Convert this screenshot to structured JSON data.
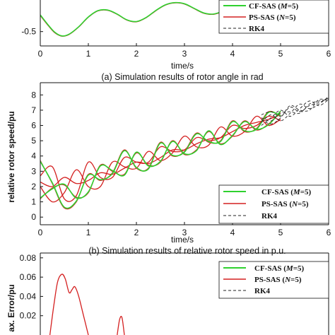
{
  "colors": {
    "cf": "#2fd12f",
    "ps": "#d42020",
    "rk4": "#222222",
    "axis": "#111111"
  },
  "chart_data": [
    {
      "type": "line",
      "caption": "(a) Simulation results of rotor angle in rad",
      "xlabel": "time/s",
      "ylabel": "",
      "xlim": [
        0,
        6
      ],
      "ylim": [
        -0.75,
        0.05
      ],
      "xticks": [
        0,
        1,
        2,
        3,
        4,
        5,
        6
      ],
      "yticks": [
        -0.5
      ],
      "ytick_labels": [
        "-0.5"
      ],
      "legend": {
        "position": "top-right",
        "entries": [
          {
            "label": "CF-SAS (",
            "var": "M",
            "suffix": "=5)",
            "style": "cf"
          },
          {
            "label": "PS-SAS (",
            "var": "N",
            "suffix": "=5)",
            "style": "ps"
          },
          {
            "label": "RK4",
            "var": "",
            "suffix": "",
            "style": "rk4"
          }
        ]
      },
      "series": [
        {
          "style": "ps",
          "x": [
            0,
            0.15,
            0.3,
            0.45,
            0.6,
            0.8,
            1.0,
            1.2,
            1.4,
            1.6,
            1.8,
            2.0,
            2.2,
            2.4,
            2.6,
            2.8,
            3.0,
            3.2,
            3.4,
            3.6,
            3.8,
            4.0,
            4.2,
            4.4,
            4.6,
            4.8,
            5.0
          ],
          "y": [
            -0.22,
            -0.38,
            -0.52,
            -0.58,
            -0.55,
            -0.42,
            -0.25,
            -0.14,
            -0.13,
            -0.2,
            -0.3,
            -0.33,
            -0.26,
            -0.14,
            -0.04,
            0.0,
            -0.02,
            -0.1,
            -0.18,
            -0.2,
            -0.15,
            -0.08,
            -0.04,
            -0.03,
            -0.06,
            -0.1,
            -0.12
          ]
        },
        {
          "style": "cf",
          "x": [
            0,
            0.15,
            0.3,
            0.45,
            0.6,
            0.8,
            1.0,
            1.2,
            1.4,
            1.6,
            1.8,
            2.0,
            2.2,
            2.4,
            2.6,
            2.8,
            3.0,
            3.2,
            3.4,
            3.6,
            3.8,
            4.0,
            4.2,
            4.4,
            4.6,
            4.8,
            5.0
          ],
          "y": [
            -0.21,
            -0.37,
            -0.51,
            -0.575,
            -0.545,
            -0.415,
            -0.245,
            -0.135,
            -0.125,
            -0.195,
            -0.295,
            -0.325,
            -0.255,
            -0.135,
            -0.035,
            0.005,
            -0.015,
            -0.095,
            -0.175,
            -0.195,
            -0.145,
            -0.075,
            -0.035,
            -0.025,
            -0.055,
            -0.095,
            -0.115
          ]
        }
      ]
    },
    {
      "type": "line",
      "caption": "(b) Simulation results of relative rotor speed in p.u.",
      "xlabel": "time/s",
      "ylabel": "relative rotor speed/pu",
      "xlim": [
        0,
        6
      ],
      "ylim": [
        -0.5,
        8.8
      ],
      "xticks": [
        0,
        1,
        2,
        3,
        4,
        5,
        6
      ],
      "yticks": [
        0,
        1,
        2,
        3,
        4,
        5,
        6,
        7,
        8
      ],
      "legend": {
        "position": "bottom-right",
        "entries": [
          {
            "label": "CF-SAS (",
            "var": "M",
            "suffix": "=5)",
            "style": "cf"
          },
          {
            "label": "PS-SAS (",
            "var": "N",
            "suffix": "=5)",
            "style": "ps"
          },
          {
            "label": "RK4",
            "var": "",
            "suffix": "",
            "style": "rk4"
          }
        ]
      },
      "series": [
        {
          "style": "ps",
          "x": [
            0,
            0.25,
            0.5,
            0.75,
            1.0,
            1.25,
            1.5,
            1.75,
            2.0,
            2.25,
            2.5,
            2.75,
            3.0,
            3.25,
            3.5,
            3.75,
            4.0,
            4.25,
            4.5,
            4.75,
            5.0
          ],
          "y": [
            3.7,
            2.2,
            0.6,
            1.0,
            2.8,
            2.4,
            2.9,
            4.4,
            3.2,
            3.2,
            4.9,
            4.0,
            4.3,
            5.5,
            4.9,
            5.0,
            6.3,
            5.6,
            5.8,
            6.9,
            6.6
          ]
        },
        {
          "style": "ps",
          "x": [
            0,
            0.25,
            0.5,
            0.75,
            1.0,
            1.25,
            1.5,
            1.75,
            2.0,
            2.25,
            2.5,
            2.75,
            3.0,
            3.25,
            3.5,
            3.75,
            4.0,
            4.25,
            4.5,
            4.75,
            5.0
          ],
          "y": [
            1.2,
            1.9,
            2.1,
            1.3,
            1.6,
            3.4,
            3.0,
            2.8,
            4.2,
            3.4,
            3.6,
            5.0,
            4.1,
            4.4,
            5.6,
            4.8,
            5.3,
            6.3,
            5.7,
            6.1,
            6.9
          ]
        },
        {
          "style": "ps",
          "x": [
            0,
            0.25,
            0.5,
            0.75,
            1.0,
            1.25,
            1.5,
            1.75,
            2.0,
            2.25,
            2.5,
            2.75,
            3.0,
            3.25,
            3.5,
            3.75,
            4.0,
            4.25,
            4.5,
            4.75,
            5.0
          ],
          "y": [
            2.0,
            1.0,
            1.6,
            3.1,
            2.0,
            2.0,
            3.6,
            3.3,
            3.2,
            4.3,
            3.7,
            4.2,
            5.3,
            4.6,
            4.7,
            5.9,
            5.3,
            5.6,
            6.6,
            6.0,
            6.4
          ]
        },
        {
          "style": "ps",
          "x": [
            0,
            0.25,
            0.5,
            0.75,
            1.0,
            1.25,
            1.5,
            1.75,
            2.0,
            2.25,
            2.5,
            2.75,
            3.0,
            3.25,
            3.5,
            3.75,
            4.0,
            4.25,
            4.5,
            4.75,
            5.0
          ],
          "y": [
            2.7,
            3.3,
            1.2,
            1.4,
            3.6,
            2.6,
            2.6,
            3.9,
            3.6,
            3.6,
            4.6,
            4.3,
            4.4,
            5.2,
            5.0,
            5.2,
            6.0,
            5.8,
            6.0,
            6.6,
            6.3
          ]
        },
        {
          "style": "ps",
          "x": [
            0,
            0.25,
            0.5,
            0.75,
            1.0,
            1.25,
            1.5,
            1.75,
            2.0,
            2.25,
            2.5,
            2.75,
            3.0,
            3.25,
            3.5,
            3.75,
            4.0,
            4.25,
            4.5,
            4.75,
            5.0
          ],
          "y": [
            2.3,
            2.0,
            2.6,
            2.2,
            2.4,
            2.9,
            2.8,
            3.2,
            3.6,
            3.5,
            3.9,
            4.4,
            4.4,
            4.8,
            5.1,
            5.2,
            5.6,
            6.0,
            6.2,
            6.4,
            6.7
          ]
        },
        {
          "style": "cf",
          "x": [
            0,
            0.25,
            0.5,
            0.75,
            1.0,
            1.25,
            1.5,
            1.75,
            2.0,
            2.25,
            2.5,
            2.75,
            3.0,
            3.25,
            3.5,
            3.75,
            4.0,
            4.25,
            4.5,
            4.75,
            5.0
          ],
          "y": [
            3.65,
            2.25,
            0.65,
            1.05,
            2.75,
            2.45,
            2.85,
            4.35,
            3.25,
            3.15,
            4.85,
            4.05,
            4.25,
            5.45,
            4.95,
            4.95,
            6.25,
            5.65,
            5.75,
            6.85,
            6.65
          ]
        },
        {
          "style": "cf",
          "x": [
            0,
            0.25,
            0.5,
            0.75,
            1.0,
            1.25,
            1.5,
            1.75,
            2.0,
            2.25,
            2.5,
            2.75,
            3.0,
            3.25,
            3.5,
            3.75,
            4.0,
            4.25,
            4.5,
            4.75,
            5.0
          ],
          "y": [
            1.25,
            1.85,
            2.15,
            1.25,
            1.65,
            3.35,
            3.05,
            2.75,
            4.25,
            3.35,
            3.65,
            4.95,
            4.15,
            4.35,
            5.65,
            4.75,
            5.35,
            6.25,
            5.75,
            6.05,
            6.95
          ]
        },
        {
          "style": "rk4",
          "x": [
            4.6,
            4.8,
            5.0,
            5.2,
            5.4,
            5.6,
            5.8,
            6.0
          ],
          "y": [
            6.7,
            6.9,
            6.6,
            7.2,
            6.9,
            7.3,
            7.5,
            7.8
          ]
        },
        {
          "style": "rk4",
          "x": [
            4.6,
            4.8,
            5.0,
            5.2,
            5.4,
            5.6,
            5.8,
            6.0
          ],
          "y": [
            6.0,
            6.5,
            7.0,
            6.6,
            7.1,
            7.6,
            7.3,
            7.7
          ]
        },
        {
          "style": "rk4",
          "x": [
            4.6,
            4.8,
            5.0,
            5.2,
            5.4,
            5.6,
            5.8,
            6.0
          ],
          "y": [
            6.4,
            6.1,
            6.5,
            7.3,
            7.0,
            7.0,
            7.7,
            7.6
          ]
        },
        {
          "style": "rk4",
          "x": [
            4.6,
            4.8,
            5.0,
            5.2,
            5.4,
            5.6,
            5.8,
            6.0
          ],
          "y": [
            6.2,
            6.7,
            6.3,
            6.8,
            7.4,
            7.1,
            7.4,
            7.9
          ]
        },
        {
          "style": "rk4",
          "x": [
            4.6,
            4.8,
            5.0,
            5.2,
            5.4,
            5.6,
            5.8,
            6.0
          ],
          "y": [
            6.5,
            6.3,
            6.8,
            6.9,
            6.8,
            7.4,
            7.6,
            7.7
          ]
        }
      ]
    },
    {
      "type": "line",
      "caption": "",
      "xlabel": "",
      "ylabel": "ax. Error/pu",
      "xlim": [
        0,
        6
      ],
      "ylim": [
        0,
        0.085
      ],
      "yticks": [
        0.02,
        0.04,
        0.06,
        0.08
      ],
      "ytick_labels": [
        "0.02",
        "0.04",
        "0.06",
        "0.08"
      ],
      "legend": {
        "position": "top-right",
        "entries": [
          {
            "label": "CF-SAS (",
            "var": "M",
            "suffix": "=5)",
            "style": "cf"
          },
          {
            "label": "PS-SAS (",
            "var": "N",
            "suffix": "=5)",
            "style": "ps"
          },
          {
            "label": "RK4",
            "var": "",
            "suffix": "",
            "style": "rk4"
          }
        ]
      },
      "series": [
        {
          "style": "ps",
          "x": [
            0.2,
            0.28,
            0.36,
            0.45,
            0.52,
            0.6,
            0.66,
            0.72,
            0.8,
            0.9,
            1.0
          ],
          "y": [
            0.0,
            0.03,
            0.055,
            0.063,
            0.058,
            0.044,
            0.047,
            0.05,
            0.04,
            0.02,
            0.0
          ]
        },
        {
          "style": "ps",
          "x": [
            1.6,
            1.65,
            1.7,
            1.75
          ],
          "y": [
            0.0,
            0.016,
            0.018,
            0.0
          ]
        }
      ]
    }
  ]
}
